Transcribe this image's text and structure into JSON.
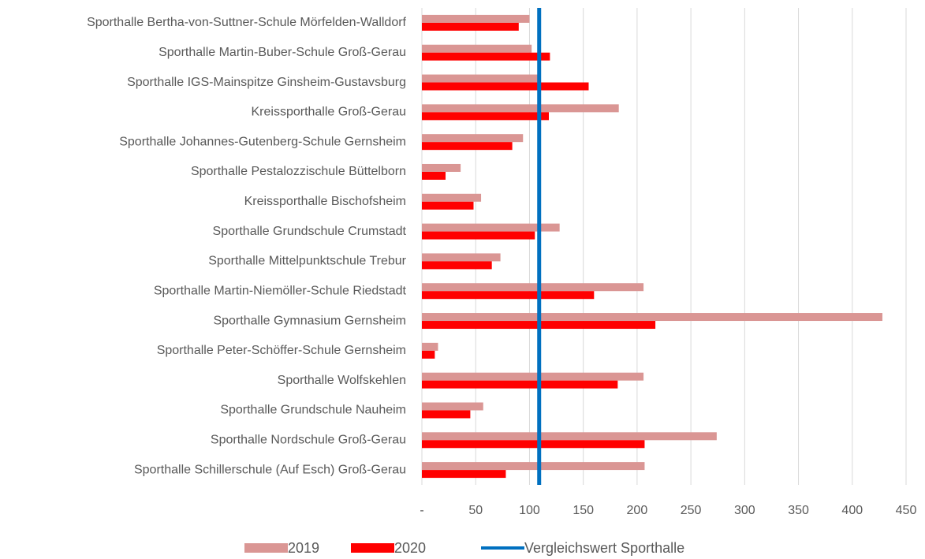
{
  "chart_data": {
    "type": "hbar",
    "categories": [
      "Sporthalle Bertha-von-Suttner-Schule Mörfelden-Walldorf",
      "Sporthalle Martin-Buber-Schule Groß-Gerau",
      "Sporthalle IGS-Mainspitze Ginsheim-Gustavsburg",
      "Kreissporthalle Groß-Gerau",
      "Sporthalle Johannes-Gutenberg-Schule Gernsheim",
      "Sporthalle Pestalozzischule Büttelborn",
      "Kreissporthalle Bischofsheim",
      "Sporthalle Grundschule Crumstadt",
      "Sporthalle Mittelpunktschule Trebur",
      "Sporthalle Martin-Niemöller-Schule Riedstadt",
      "Sporthalle Gymnasium Gernsheim",
      "Sporthalle Peter-Schöffer-Schule Gernsheim",
      "Sporthalle Wolfskehlen",
      "Sporthalle Grundschule Nauheim",
      "Sporthalle Nordschule Groß-Gerau",
      "Sporthalle Schillerschule (Auf Esch) Groß-Gerau"
    ],
    "series": [
      {
        "name": "2019",
        "color": "#da9694",
        "values": [
          100,
          102,
          108,
          183,
          94,
          36,
          55,
          128,
          73,
          206,
          428,
          15,
          206,
          57,
          274,
          207
        ]
      },
      {
        "name": "2020",
        "color": "#ff0000",
        "values": [
          90,
          119,
          155,
          118,
          84,
          22,
          48,
          105,
          65,
          160,
          217,
          12,
          182,
          45,
          207,
          78
        ]
      }
    ],
    "reference": {
      "name": "Vergleichswert Sporthalle",
      "value": 109,
      "color": "#0070c0"
    },
    "xlim": [
      0,
      450
    ],
    "xticks": [
      {
        "value": 0,
        "label": "-"
      },
      50,
      100,
      150,
      200,
      250,
      300,
      350,
      400,
      450
    ],
    "grid": true
  }
}
